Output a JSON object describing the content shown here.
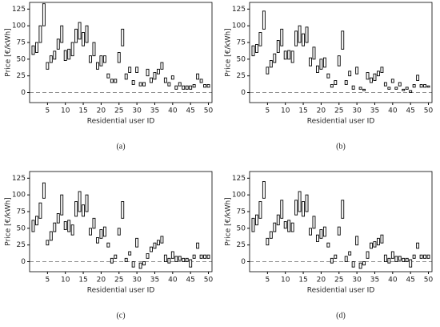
{
  "chart_data": [
    {
      "type": "box",
      "title": "(a)",
      "xlabel": "Residential user ID",
      "ylabel": "Price [€/kWh]",
      "xlim": [
        0,
        51
      ],
      "ylim": [
        -15,
        135
      ],
      "xticks": [
        5,
        10,
        15,
        20,
        25,
        30,
        35,
        40,
        45,
        50
      ],
      "yticks": [
        0,
        25,
        50,
        75,
        100,
        125
      ],
      "hline": 0,
      "color": "#000000",
      "x": [
        1,
        2,
        3,
        4,
        5,
        6,
        7,
        8,
        9,
        10,
        11,
        12,
        13,
        14,
        15,
        16,
        17,
        18,
        19,
        20,
        21,
        22,
        23,
        24,
        25,
        26,
        27,
        28,
        29,
        30,
        31,
        32,
        33,
        34,
        35,
        36,
        37,
        38,
        39,
        40,
        41,
        42,
        43,
        44,
        45,
        46,
        47,
        48,
        49,
        50
      ],
      "q1": [
        57,
        60,
        75,
        100,
        35,
        45,
        50,
        65,
        75,
        48,
        50,
        55,
        75,
        80,
        70,
        75,
        45,
        55,
        35,
        40,
        45,
        22,
        15,
        15,
        45,
        70,
        20,
        30,
        12,
        30,
        10,
        10,
        25,
        15,
        20,
        28,
        35,
        15,
        10,
        20,
        5,
        10,
        5,
        5,
        5,
        8,
        20,
        15,
        8,
        8
      ],
      "q3": [
        70,
        75,
        100,
        133,
        45,
        55,
        62,
        80,
        100,
        63,
        65,
        75,
        95,
        105,
        90,
        100,
        55,
        75,
        45,
        55,
        55,
        28,
        20,
        20,
        60,
        95,
        28,
        38,
        18,
        38,
        15,
        15,
        35,
        22,
        30,
        35,
        45,
        22,
        15,
        25,
        10,
        15,
        10,
        10,
        10,
        12,
        28,
        20,
        12,
        12
      ]
    },
    {
      "type": "box",
      "title": "(b)",
      "xlabel": "Residential user ID",
      "ylabel": "Price [€/kWh]",
      "xlim": [
        0,
        51
      ],
      "ylim": [
        -15,
        135
      ],
      "xticks": [
        5,
        10,
        15,
        20,
        25,
        30,
        35,
        40,
        45,
        50
      ],
      "yticks": [
        0,
        25,
        50,
        75,
        100,
        125
      ],
      "hline": 0,
      "color": "#000000",
      "x": [
        1,
        2,
        3,
        4,
        5,
        6,
        7,
        8,
        9,
        10,
        11,
        12,
        13,
        14,
        15,
        16,
        17,
        18,
        19,
        20,
        21,
        22,
        23,
        24,
        25,
        26,
        27,
        28,
        29,
        30,
        31,
        32,
        33,
        34,
        35,
        36,
        37,
        38,
        39,
        40,
        41,
        42,
        43,
        44,
        45,
        46,
        47,
        48,
        49,
        50
      ],
      "q1": [
        55,
        60,
        70,
        95,
        28,
        38,
        45,
        60,
        70,
        50,
        50,
        45,
        70,
        75,
        70,
        75,
        40,
        50,
        30,
        35,
        38,
        22,
        8,
        12,
        40,
        65,
        12,
        25,
        5,
        28,
        5,
        3,
        20,
        15,
        18,
        25,
        30,
        10,
        5,
        15,
        5,
        10,
        3,
        5,
        0,
        8,
        18,
        8,
        8,
        8
      ],
      "q3": [
        70,
        72,
        90,
        122,
        38,
        48,
        58,
        78,
        95,
        62,
        63,
        62,
        92,
        100,
        88,
        98,
        52,
        68,
        40,
        50,
        52,
        28,
        12,
        18,
        55,
        92,
        18,
        32,
        10,
        38,
        8,
        5,
        30,
        22,
        28,
        32,
        38,
        15,
        8,
        20,
        8,
        15,
        5,
        8,
        3,
        12,
        26,
        12,
        12,
        10
      ]
    },
    {
      "type": "box",
      "title": "(c)",
      "xlabel": "Residential user ID",
      "ylabel": "Price [€/kWh]",
      "xlim": [
        0,
        51
      ],
      "ylim": [
        -15,
        135
      ],
      "xticks": [
        5,
        10,
        15,
        20,
        25,
        30,
        35,
        40,
        45,
        50
      ],
      "yticks": [
        0,
        25,
        50,
        75,
        100,
        125
      ],
      "hline": 0,
      "color": "#000000",
      "x": [
        1,
        2,
        3,
        4,
        5,
        6,
        7,
        8,
        9,
        10,
        11,
        12,
        13,
        14,
        15,
        16,
        17,
        18,
        19,
        20,
        21,
        22,
        23,
        24,
        25,
        26,
        27,
        28,
        29,
        30,
        31,
        32,
        33,
        34,
        35,
        36,
        37,
        38,
        39,
        40,
        41,
        42,
        43,
        44,
        45,
        46,
        47,
        48,
        49,
        50
      ],
      "q1": [
        45,
        55,
        65,
        95,
        25,
        32,
        45,
        58,
        70,
        48,
        45,
        40,
        68,
        75,
        68,
        75,
        40,
        50,
        28,
        35,
        38,
        22,
        -2,
        5,
        40,
        65,
        0,
        10,
        -8,
        22,
        -10,
        -5,
        5,
        15,
        20,
        25,
        28,
        0,
        -2,
        5,
        0,
        2,
        0,
        0,
        -8,
        5,
        20,
        5,
        5,
        5
      ],
      "q3": [
        62,
        68,
        88,
        118,
        32,
        45,
        58,
        72,
        100,
        60,
        62,
        55,
        90,
        105,
        85,
        100,
        50,
        65,
        36,
        48,
        52,
        28,
        5,
        10,
        50,
        90,
        5,
        15,
        0,
        35,
        -2,
        0,
        12,
        22,
        28,
        32,
        38,
        10,
        5,
        15,
        8,
        8,
        5,
        5,
        3,
        10,
        28,
        10,
        10,
        10
      ]
    },
    {
      "type": "box",
      "title": "(d)",
      "xlabel": "Residential user ID",
      "ylabel": "Price [€/kWh]",
      "xlim": [
        0,
        51
      ],
      "ylim": [
        -15,
        135
      ],
      "xticks": [
        5,
        10,
        15,
        20,
        25,
        30,
        35,
        40,
        45,
        50
      ],
      "yticks": [
        0,
        25,
        50,
        75,
        100,
        125
      ],
      "hline": 0,
      "color": "#000000",
      "x": [
        1,
        2,
        3,
        4,
        5,
        6,
        7,
        8,
        9,
        10,
        11,
        12,
        13,
        14,
        15,
        16,
        17,
        18,
        19,
        20,
        21,
        22,
        23,
        24,
        25,
        26,
        27,
        28,
        29,
        30,
        31,
        32,
        33,
        34,
        35,
        36,
        37,
        38,
        39,
        40,
        41,
        42,
        43,
        44,
        45,
        46,
        47,
        48,
        49,
        50
      ],
      "q1": [
        45,
        55,
        65,
        95,
        25,
        35,
        45,
        55,
        65,
        50,
        45,
        45,
        70,
        75,
        68,
        75,
        40,
        50,
        30,
        35,
        38,
        22,
        -2,
        5,
        40,
        65,
        0,
        10,
        -8,
        25,
        -10,
        -5,
        5,
        20,
        22,
        25,
        28,
        0,
        -2,
        5,
        0,
        2,
        0,
        0,
        -8,
        5,
        20,
        5,
        5,
        5
      ],
      "q3": [
        65,
        70,
        90,
        120,
        35,
        45,
        58,
        70,
        92,
        60,
        62,
        58,
        92,
        105,
        90,
        100,
        50,
        68,
        40,
        48,
        52,
        28,
        5,
        10,
        52,
        92,
        8,
        15,
        0,
        38,
        -2,
        0,
        15,
        28,
        30,
        35,
        40,
        10,
        5,
        15,
        8,
        8,
        5,
        5,
        3,
        10,
        28,
        10,
        10,
        10
      ]
    }
  ]
}
